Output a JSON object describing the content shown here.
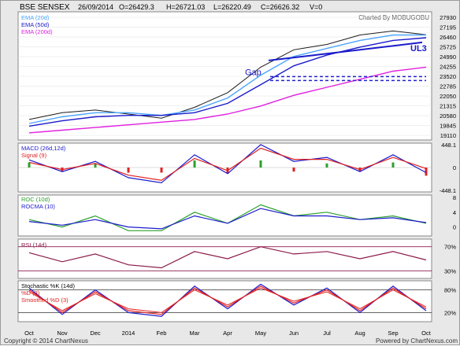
{
  "header": {
    "symbol": "BSE SENSEX",
    "date": "26/09/2014",
    "open": "O=26429.3",
    "high": "H=26721.03",
    "low": "L=26220.49",
    "close": "C=26626.32",
    "volume": "V=0",
    "credit": "Charted By MOBUGOBU"
  },
  "footer": {
    "copyright": "Copyright © 2014 ChartNexus",
    "powered": "Powered by ChartNexus.com"
  },
  "colors": {
    "price": "#1a1a1a",
    "ema20": "#4da6ff",
    "ema50": "#1a1acc",
    "ema200": "#e020e0",
    "macd": "#1a1acc",
    "signal": "#e02020",
    "hist_pos": "#2ca02c",
    "hist_neg": "#e02020",
    "roc": "#2ca02c",
    "rocma": "#1a1acc",
    "rsi": "#8b1a4a",
    "stoch_k": "#1a1acc",
    "stoch_d": "#e02020",
    "stoch_smoothed": "#e02020",
    "annot": "#1a1acc",
    "gap": "#2222cc"
  },
  "chart_data": [
    {
      "type": "line",
      "title": "BSE SENSEX",
      "x": [
        "Oct",
        "Nov",
        "Dec",
        "2014",
        "Feb",
        "Mar",
        "Apr",
        "May",
        "Jun",
        "Jul",
        "Aug",
        "Sep",
        "Oct"
      ],
      "ylim": [
        19000,
        28100
      ],
      "y_ticks": [
        "27930",
        "27195",
        "26460",
        "25725",
        "24990",
        "24255",
        "23520",
        "22785",
        "22050",
        "21315",
        "20580",
        "19845",
        "19110"
      ],
      "series": [
        {
          "name": "BSE SENSEX",
          "values": [
            20300,
            20800,
            21000,
            20700,
            20400,
            21200,
            22300,
            24200,
            25500,
            25900,
            26600,
            26900,
            26626
          ]
        },
        {
          "name": "EMA (20d)",
          "values": [
            20000,
            20500,
            20800,
            20800,
            20600,
            21000,
            21900,
            23600,
            25000,
            25600,
            26200,
            26600,
            26600
          ]
        },
        {
          "name": "EMA (50d)",
          "values": [
            19800,
            20200,
            20500,
            20600,
            20600,
            20800,
            21500,
            22900,
            24300,
            25100,
            25700,
            26200,
            26400
          ]
        },
        {
          "name": "EMA (200d)",
          "values": [
            19300,
            19500,
            19700,
            19900,
            20100,
            20300,
            20700,
            21300,
            22100,
            22700,
            23300,
            23900,
            24200
          ]
        }
      ],
      "annotations": [
        "Gap",
        "UL3"
      ]
    },
    {
      "type": "line",
      "title": "MACD (26d,12d)",
      "ylim": [
        -448.1,
        448.1
      ],
      "y_ticks": [
        "448.1",
        "0",
        "-448.1"
      ],
      "series": [
        {
          "name": "MACD (26d,12d)",
          "values": [
            150,
            -80,
            120,
            -200,
            -300,
            250,
            -120,
            450,
            120,
            200,
            -80,
            250,
            -100
          ]
        },
        {
          "name": "Signal (9)",
          "values": [
            100,
            -40,
            80,
            -150,
            -250,
            180,
            -60,
            380,
            160,
            160,
            -40,
            200,
            -20
          ]
        }
      ]
    },
    {
      "type": "line",
      "title": "ROC (10d)",
      "ylim": [
        -2,
        8
      ],
      "y_ticks": [
        "8",
        "4",
        "0"
      ],
      "series": [
        {
          "name": "ROC (10d)",
          "values": [
            2,
            0,
            3,
            -1,
            -1,
            4,
            1,
            6,
            3,
            4,
            2,
            3,
            1
          ]
        },
        {
          "name": "ROCMA (10)",
          "values": [
            1.5,
            0.5,
            2,
            0,
            -0.5,
            3,
            1,
            5,
            3,
            3,
            2,
            2.5,
            1.2
          ]
        }
      ]
    },
    {
      "type": "line",
      "title": "RSI (14d)",
      "ylim": [
        20,
        80
      ],
      "y_ticks": [
        "70%",
        "30%"
      ],
      "series": [
        {
          "name": "RSI (14d)",
          "values": [
            60,
            45,
            58,
            40,
            35,
            62,
            50,
            70,
            58,
            62,
            50,
            62,
            48
          ]
        }
      ]
    },
    {
      "type": "line",
      "title": "Stochastic %K (14d)",
      "ylim": [
        0,
        100
      ],
      "y_ticks": [
        "80%",
        "20%"
      ],
      "series": [
        {
          "name": "%K",
          "values": [
            85,
            15,
            80,
            20,
            10,
            90,
            30,
            95,
            40,
            85,
            20,
            90,
            25
          ]
        },
        {
          "name": "%D (3)",
          "values": [
            80,
            20,
            75,
            25,
            15,
            85,
            35,
            90,
            45,
            80,
            25,
            85,
            30
          ]
        },
        {
          "name": "Smoothed %D (3)",
          "values": [
            75,
            25,
            70,
            30,
            20,
            80,
            40,
            85,
            50,
            75,
            30,
            80,
            35
          ]
        }
      ]
    }
  ]
}
